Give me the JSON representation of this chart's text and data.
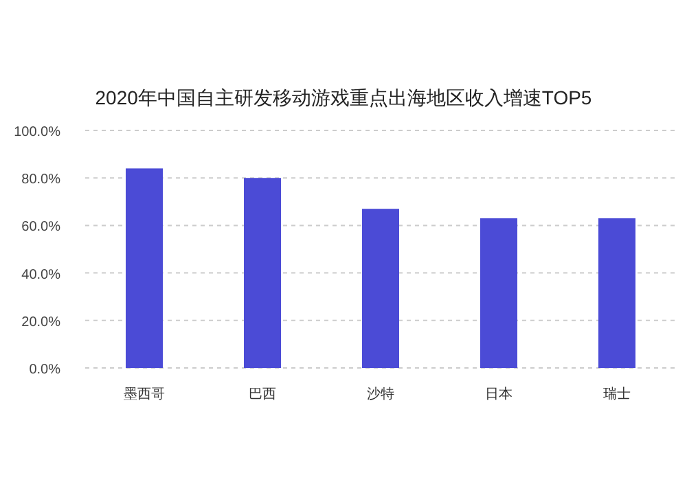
{
  "chart_data": {
    "type": "bar",
    "title": "2020年中国自主研发移动游戏重点出海地区收入增速TOP5",
    "categories": [
      "墨西哥",
      "巴西",
      "沙特",
      "日本",
      "瑞士"
    ],
    "values": [
      84,
      80,
      67,
      63,
      63
    ],
    "color": "#4b4bd6",
    "ylim": [
      0,
      100
    ],
    "yticks": [
      {
        "value": 0,
        "label": "0.0%"
      },
      {
        "value": 20,
        "label": "20.0%"
      },
      {
        "value": 40,
        "label": "40.0%"
      },
      {
        "value": 60,
        "label": "60.0%"
      },
      {
        "value": 80,
        "label": "80.0%"
      },
      {
        "value": 100,
        "label": "100.0%"
      }
    ],
    "grid": "y"
  }
}
